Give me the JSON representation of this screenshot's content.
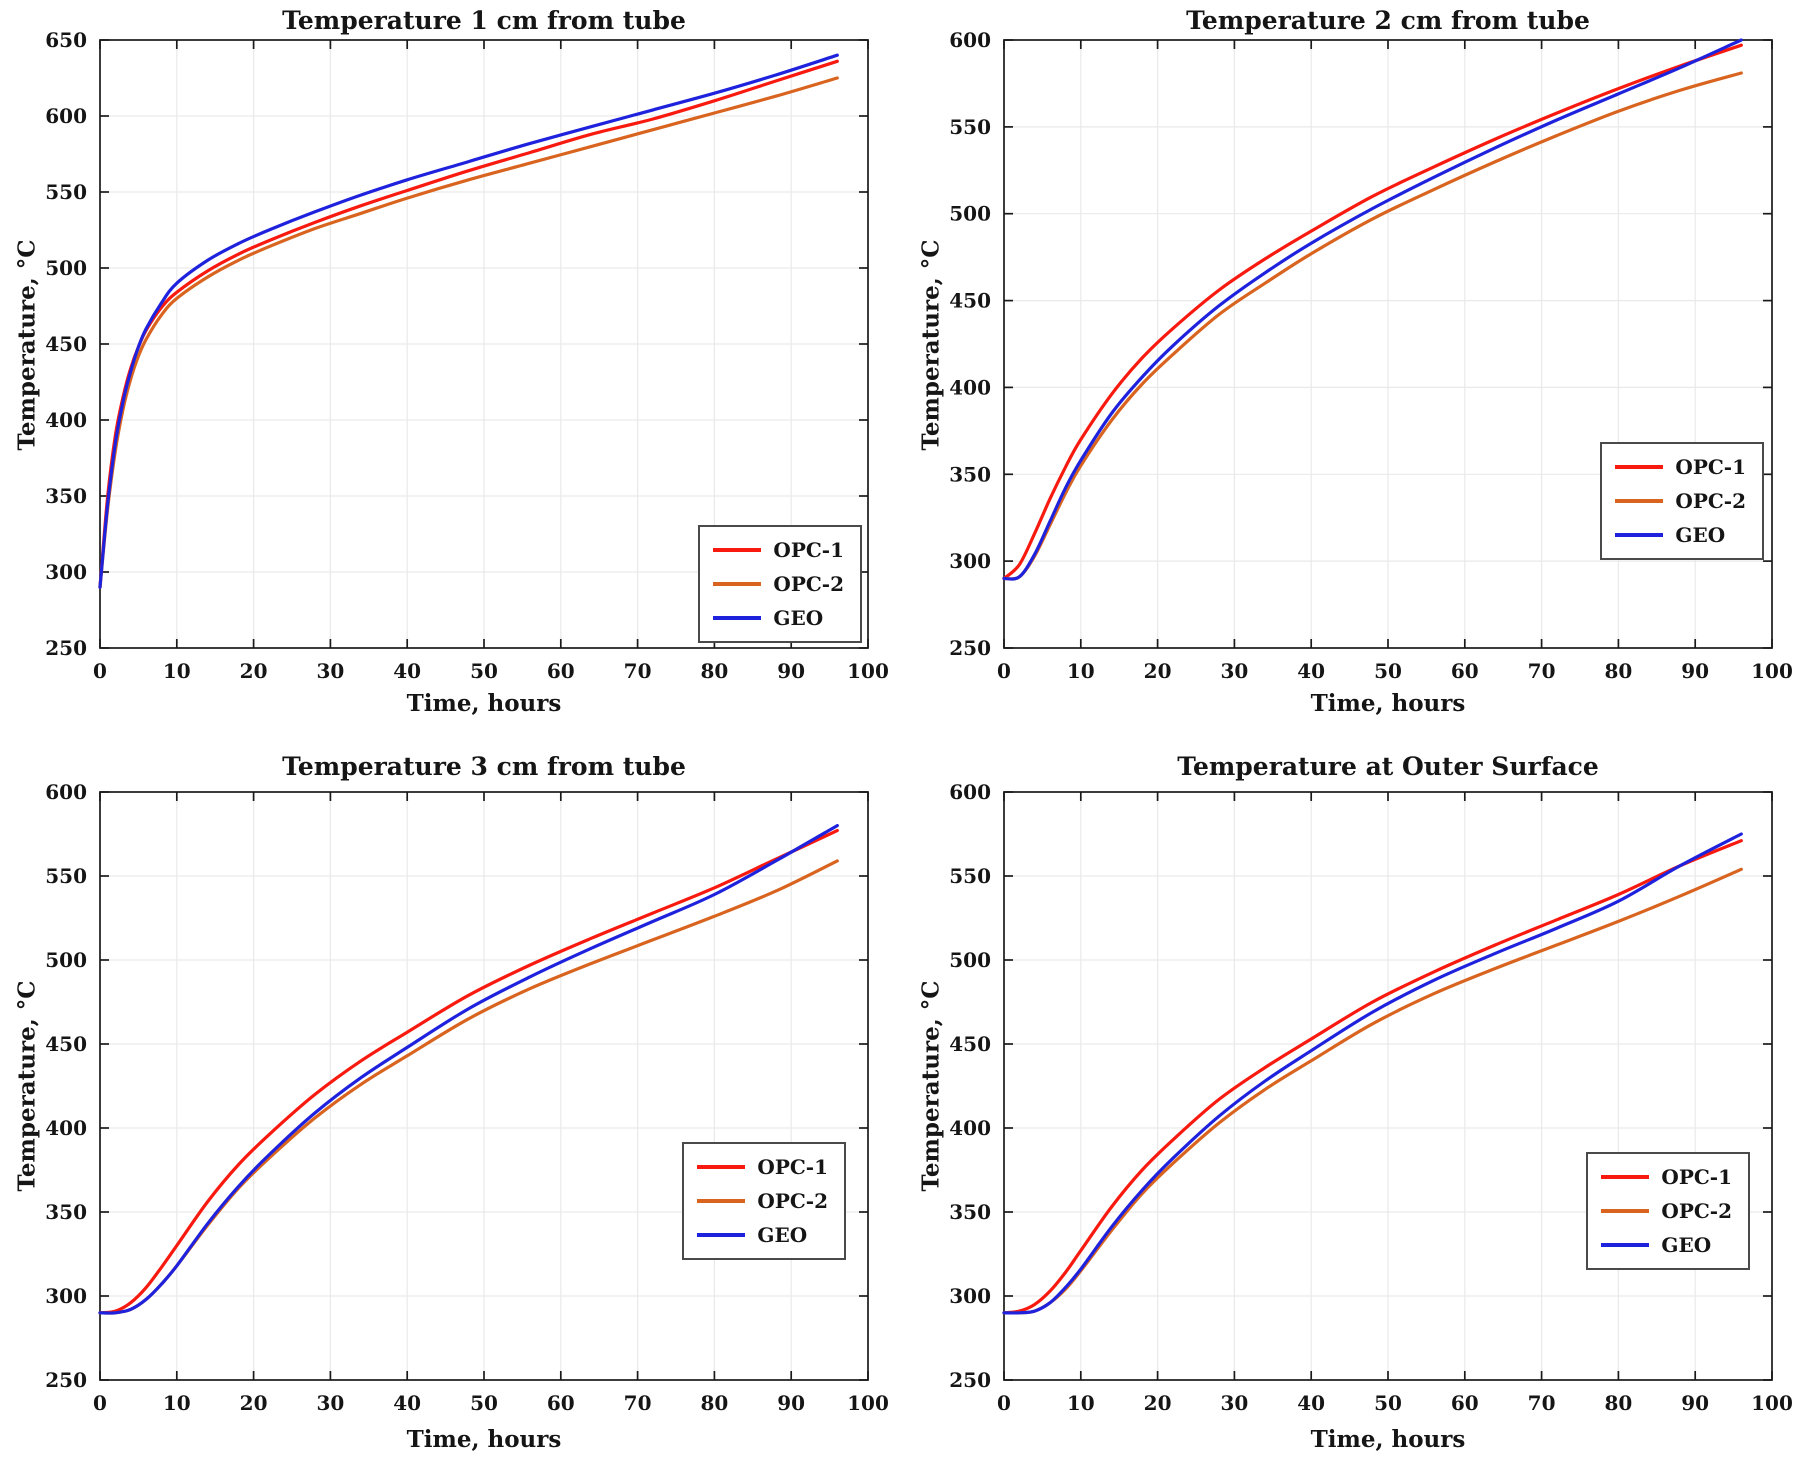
{
  "figure": {
    "panels": 4,
    "description": "2x2 grid of temperature-vs-time line plots"
  },
  "colors": {
    "opc1": "#F8190F",
    "opc2": "#D9641F",
    "geo": "#1F22DD",
    "grid": "#E9E9E9",
    "axis": "#1A1A1A",
    "legend_border": "#4A4A4A"
  },
  "chart_data": [
    {
      "type": "line",
      "title": "Temperature 1 cm from tube",
      "xlabel": "Time, hours",
      "ylabel": "Temperature, °C",
      "xlim": [
        0,
        100
      ],
      "ylim": [
        250,
        650
      ],
      "xticks": [
        0,
        10,
        20,
        30,
        40,
        50,
        60,
        70,
        80,
        90,
        100
      ],
      "yticks": [
        250,
        300,
        350,
        400,
        450,
        500,
        550,
        600,
        650
      ],
      "grid": true,
      "legend_position": "inside bottom-right",
      "x": [
        0,
        1,
        2,
        3,
        4,
        5,
        6,
        8,
        10,
        14,
        18,
        22,
        28,
        34,
        40,
        48,
        56,
        64,
        72,
        80,
        88,
        96
      ],
      "series": [
        {
          "name": "OPC-1",
          "color": "#F8190F",
          "values": [
            290,
            350,
            390,
            415,
            434,
            448,
            459,
            474,
            484,
            498,
            509,
            518,
            530,
            541,
            551,
            564,
            576,
            588,
            598,
            610,
            623,
            636
          ]
        },
        {
          "name": "OPC-2",
          "color": "#D9641F",
          "values": [
            290,
            342,
            380,
            407,
            427,
            442,
            453,
            469,
            480,
            494,
            505,
            514,
            526,
            536,
            546,
            558,
            569,
            580,
            591,
            602,
            613,
            625
          ]
        },
        {
          "name": "GEO",
          "color": "#1F22DD",
          "values": [
            290,
            345,
            385,
            412,
            432,
            448,
            460,
            477,
            490,
            505,
            516,
            525,
            537,
            548,
            558,
            570,
            582,
            593,
            604,
            615,
            627,
            640
          ]
        }
      ]
    },
    {
      "type": "line",
      "title": "Temperature 2 cm from tube",
      "xlabel": "Time, hours",
      "ylabel": "Temperature, °C",
      "xlim": [
        0,
        100
      ],
      "ylim": [
        250,
        600
      ],
      "xticks": [
        0,
        10,
        20,
        30,
        40,
        50,
        60,
        70,
        80,
        90,
        100
      ],
      "yticks": [
        250,
        300,
        350,
        400,
        450,
        500,
        550,
        600
      ],
      "grid": true,
      "legend_position": "inside right",
      "x": [
        0,
        2,
        4,
        6,
        8,
        10,
        14,
        18,
        22,
        28,
        34,
        40,
        48,
        56,
        64,
        72,
        80,
        88,
        96
      ],
      "series": [
        {
          "name": "OPC-1",
          "color": "#F8190F",
          "values": [
            290,
            298,
            316,
            336,
            354,
            370,
            396,
            417,
            434,
            456,
            474,
            490,
            510,
            527,
            543,
            558,
            572,
            585,
            597
          ]
        },
        {
          "name": "OPC-2",
          "color": "#D9641F",
          "values": [
            290,
            291,
            303,
            321,
            339,
            355,
            381,
            402,
            419,
            442,
            460,
            477,
            497,
            514,
            530,
            545,
            559,
            571,
            581
          ]
        },
        {
          "name": "GEO",
          "color": "#1F22DD",
          "values": [
            290,
            291,
            304,
            323,
            342,
            358,
            385,
            406,
            424,
            447,
            466,
            483,
            503,
            521,
            538,
            554,
            569,
            584,
            600
          ]
        }
      ]
    },
    {
      "type": "line",
      "title": "Temperature 3 cm from tube",
      "xlabel": "Time, hours",
      "ylabel": "Temperature, °C",
      "xlim": [
        0,
        100
      ],
      "ylim": [
        250,
        600
      ],
      "xticks": [
        0,
        10,
        20,
        30,
        40,
        50,
        60,
        70,
        80,
        90,
        100
      ],
      "yticks": [
        250,
        300,
        350,
        400,
        450,
        500,
        550,
        600
      ],
      "grid": true,
      "legend_position": "inside right-lower",
      "x": [
        0,
        2,
        4,
        6,
        8,
        10,
        14,
        18,
        22,
        28,
        34,
        40,
        48,
        56,
        64,
        72,
        80,
        88,
        96
      ],
      "series": [
        {
          "name": "OPC-1",
          "color": "#F8190F",
          "values": [
            290,
            291,
            296,
            305,
            317,
            330,
            356,
            378,
            396,
            420,
            440,
            457,
            479,
            497,
            513,
            528,
            543,
            560,
            577
          ]
        },
        {
          "name": "OPC-2",
          "color": "#D9641F",
          "values": [
            290,
            290,
            292,
            298,
            307,
            318,
            342,
            364,
            382,
            406,
            426,
            443,
            465,
            483,
            498,
            512,
            526,
            541,
            559
          ]
        },
        {
          "name": "GEO",
          "color": "#1F22DD",
          "values": [
            290,
            290,
            292,
            298,
            307,
            318,
            343,
            365,
            384,
            409,
            430,
            448,
            471,
            490,
            507,
            523,
            539,
            559,
            580
          ]
        }
      ]
    },
    {
      "type": "line",
      "title": "Temperature at Outer Surface",
      "xlabel": "Time, hours",
      "ylabel": "Temperature, °C",
      "xlim": [
        0,
        100
      ],
      "ylim": [
        250,
        600
      ],
      "xticks": [
        0,
        10,
        20,
        30,
        40,
        50,
        60,
        70,
        80,
        90,
        100
      ],
      "yticks": [
        250,
        300,
        350,
        400,
        450,
        500,
        550,
        600
      ],
      "grid": true,
      "legend_position": "inside right-lower",
      "x": [
        0,
        2,
        4,
        6,
        8,
        10,
        14,
        18,
        22,
        28,
        34,
        40,
        48,
        56,
        64,
        72,
        80,
        88,
        96
      ],
      "series": [
        {
          "name": "OPC-1",
          "color": "#F8190F",
          "values": [
            290,
            291,
            295,
            303,
            314,
            327,
            353,
            375,
            393,
            417,
            436,
            453,
            475,
            493,
            509,
            524,
            539,
            556,
            571
          ]
        },
        {
          "name": "OPC-2",
          "color": "#D9641F",
          "values": [
            290,
            290,
            291,
            296,
            304,
            315,
            339,
            361,
            379,
            403,
            423,
            440,
            462,
            480,
            495,
            509,
            523,
            538,
            554
          ]
        },
        {
          "name": "GEO",
          "color": "#1F22DD",
          "values": [
            290,
            290,
            291,
            296,
            305,
            316,
            341,
            363,
            382,
            407,
            428,
            446,
            469,
            488,
            504,
            519,
            535,
            556,
            575
          ]
        }
      ]
    }
  ]
}
